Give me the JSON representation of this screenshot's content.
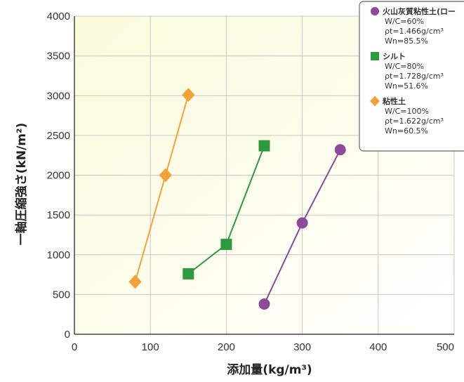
{
  "chart_data": {
    "type": "line",
    "xlabel": "添加量(kg/m³)",
    "ylabel": "一軸圧縮強さ(kN/m²)",
    "xlim": [
      0,
      500
    ],
    "ylim": [
      0,
      4000
    ],
    "xticks": [
      0,
      100,
      200,
      300,
      400,
      500
    ],
    "yticks": [
      0,
      500,
      1000,
      1500,
      2000,
      2500,
      3000,
      3500,
      4000
    ],
    "grid": true,
    "legend_position": "top-right",
    "series": [
      {
        "name": "火山灰質粘性土(ロー",
        "details": [
          "W/C=60%",
          "ρt=1.466g/cm³",
          "Wn=85.5%"
        ],
        "color": "#8b4a9c",
        "marker": "circle",
        "x": [
          250,
          300,
          350
        ],
        "y": [
          380,
          1400,
          2320
        ]
      },
      {
        "name": "シルト",
        "details": [
          "W/C=80%",
          "ρt=1.728g/cm³",
          "Wn=51.6%"
        ],
        "color": "#2e9a3e",
        "marker": "square",
        "x": [
          150,
          200,
          250
        ],
        "y": [
          760,
          1130,
          2370
        ]
      },
      {
        "name": "粘性土",
        "details": [
          "W/C=100%",
          "ρt=1.622g/cm³",
          "Wn=60.5%"
        ],
        "color": "#f3a23a",
        "marker": "diamond",
        "x": [
          80,
          120,
          150
        ],
        "y": [
          660,
          2000,
          3010
        ]
      }
    ]
  }
}
